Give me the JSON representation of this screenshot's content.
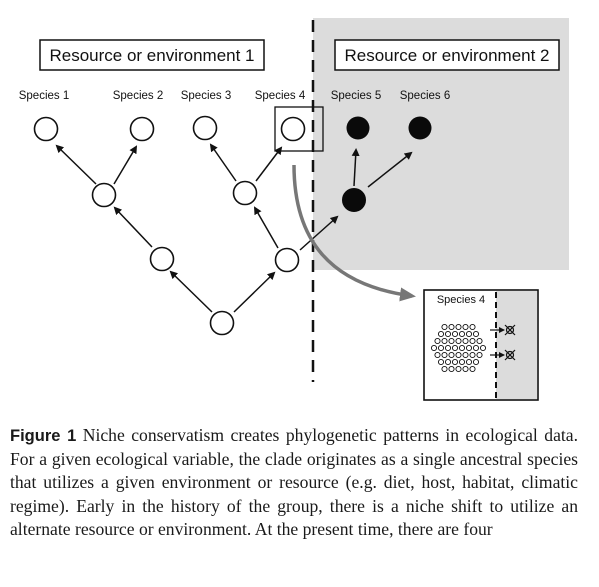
{
  "figure": {
    "env1_label": "Resource or environment 1",
    "env2_label": "Resource or environment 2",
    "species": [
      {
        "label": "Species 1",
        "filled": false
      },
      {
        "label": "Species 2",
        "filled": false
      },
      {
        "label": "Species 3",
        "filled": false
      },
      {
        "label": "Species 4",
        "filled": false
      },
      {
        "label": "Species 5",
        "filled": true
      },
      {
        "label": "Species 6",
        "filled": true
      }
    ],
    "inset_label": "Species 4",
    "colors": {
      "env2_shading": "#dcdcdc",
      "filled_node": "#0a0a0a",
      "curve_arrow": "#777777"
    }
  },
  "caption": {
    "label": "Figure 1",
    "text": "Niche conservatism creates phylogenetic patterns in ecological data. For a given ecological variable, the clade originates as a single ancestral species that utilizes a given environment or resource (e.g. diet, host, habitat, climatic regime). Early in the history of the group, there is a niche shift to utilize an alternate resource or environment. At the present time, there are four"
  }
}
